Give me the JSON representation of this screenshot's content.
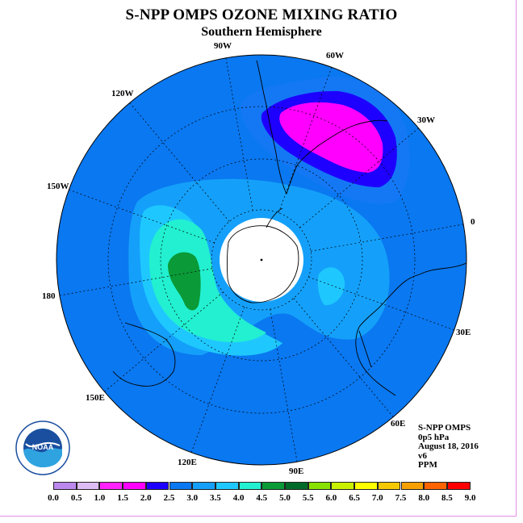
{
  "header": {
    "title": "S-NPP OMPS OZONE MIXING RATIO",
    "subtitle": "Southern Hemisphere"
  },
  "map": {
    "projection": "south-polar-stereographic",
    "longitude_labels": {
      "lon_90W": "90W",
      "lon_60W": "60W",
      "lon_30W": "30W",
      "lon_0": "0",
      "lon_30E": "30E",
      "lon_60E": "60E",
      "lon_90E": "90E",
      "lon_120E": "120E",
      "lon_150E": "150E",
      "lon_180": "180",
      "lon_150W": "150W",
      "lon_120W": "120W"
    },
    "field_levels_ppm": {
      "background": "2.5-3.0",
      "peak_over_south_atlantic": "1.0-1.5",
      "max_over_ross_sea": "4.0-4.5"
    }
  },
  "info": {
    "instrument": "S-NPP OMPS",
    "level": "0p5 hPa",
    "date": "August 18, 2016",
    "version": "v6",
    "units": "PPM"
  },
  "colorbar": {
    "labels": [
      "0.0",
      "0.5",
      "1.0",
      "1.5",
      "2.0",
      "2.5",
      "3.0",
      "3.5",
      "4.0",
      "4.5",
      "5.0",
      "5.5",
      "6.0",
      "6.5",
      "7.0",
      "7.5",
      "8.0",
      "8.5",
      "9.0"
    ],
    "colors": [
      "#bb88ee",
      "#ddbbf5",
      "#ff22ff",
      "#ff00ff",
      "#1e00ff",
      "#0a78f0",
      "#14a0fa",
      "#1ec8ff",
      "#22f0d0",
      "#0a9a38",
      "#006b28",
      "#88e000",
      "#c8f000",
      "#ffff00",
      "#f5c800",
      "#f5a000",
      "#ff6400",
      "#ff0000",
      "#8c5a3c"
    ]
  },
  "logo": {
    "text": "NOAA",
    "ring_text": "NATIONAL OCEANIC AND ATMOSPHERIC ADMINISTRATION · U.S. DEPARTMENT OF COMMERCE"
  }
}
